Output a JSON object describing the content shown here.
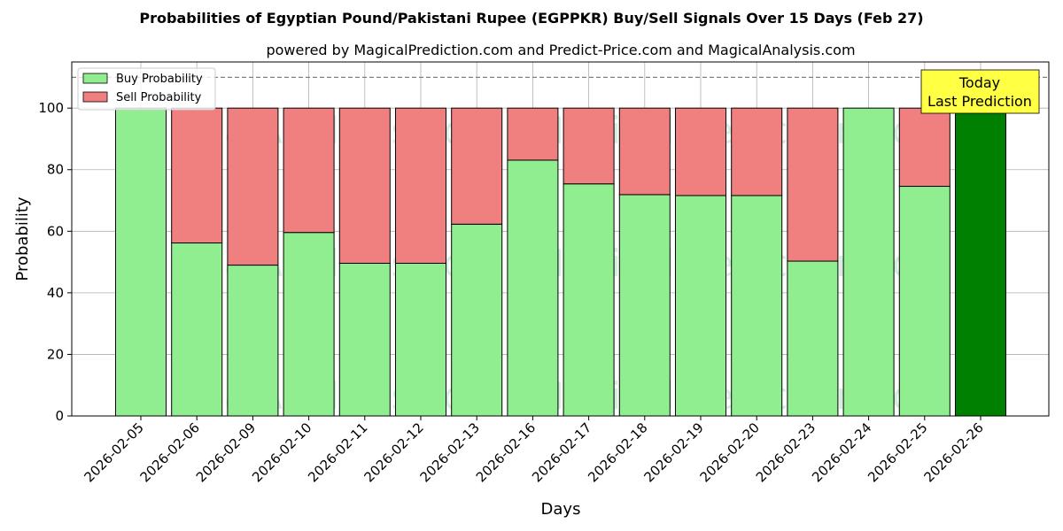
{
  "chart_data": {
    "type": "bar",
    "stacked": true,
    "title": "Probabilities of Egyptian Pound/Pakistani Rupee (EGPPKR) Buy/Sell Signals Over 15 Days (Feb 27)",
    "subtitle": "powered by MagicalPrediction.com and Predict-Price.com and MagicalAnalysis.com",
    "xlabel": "Days",
    "ylabel": "Probability",
    "ylim": [
      0,
      115
    ],
    "yticks": [
      0,
      20,
      40,
      60,
      80,
      100
    ],
    "grid": true,
    "legend_position": "top-left",
    "reference_line": 110,
    "categories": [
      "2026-02-05",
      "2026-02-06",
      "2026-02-09",
      "2026-02-10",
      "2026-02-11",
      "2026-02-12",
      "2026-02-13",
      "2026-02-16",
      "2026-02-17",
      "2026-02-18",
      "2026-02-19",
      "2026-02-20",
      "2026-02-23",
      "2026-02-24",
      "2026-02-25",
      "2026-02-26"
    ],
    "series": [
      {
        "name": "Buy Probability",
        "color": "#90ee90",
        "values": [
          100,
          56.2,
          49,
          59.6,
          49.6,
          49.6,
          62.3,
          83.1,
          75.4,
          71.9,
          71.6,
          71.6,
          50.3,
          100,
          74.6,
          100
        ]
      },
      {
        "name": "Sell Probability",
        "color": "#f08080",
        "values": [
          0,
          43.8,
          51,
          40.4,
          50.4,
          50.4,
          37.7,
          16.9,
          24.6,
          28.1,
          28.4,
          28.4,
          49.7,
          0,
          25.4,
          0
        ]
      }
    ],
    "highlight": {
      "index": 15,
      "color": "#008000",
      "label_line1": "Today",
      "label_line2": "Last Prediction",
      "box_color": "#ffff44"
    },
    "watermarks": [
      "MagicalAnalysis.com",
      "MagicalPrediction.com"
    ]
  }
}
